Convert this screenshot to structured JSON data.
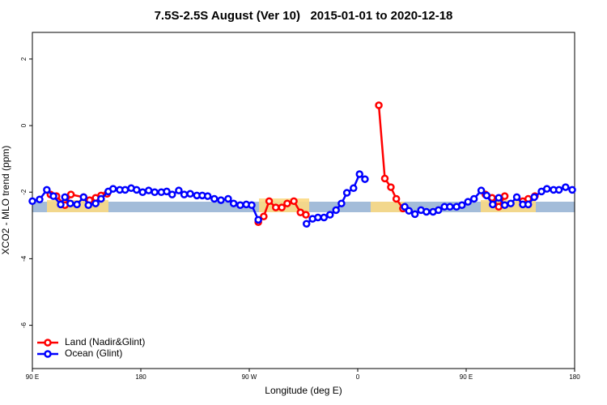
{
  "chart_data": {
    "type": "line",
    "title": "7.5S-2.5S August (Ver 10)   2015-01-01 to 2020-12-18",
    "x_label": "Longitude (deg E)",
    "y_label": "XCO2 - MLO trend (ppm)",
    "xlim": [
      90,
      540
    ],
    "xticks": [
      {
        "value": 90,
        "label": "90 E"
      },
      180,
      {
        "value": 270,
        "label": "90 W"
      },
      {
        "value": 360,
        "label": "0"
      },
      {
        "value": 450,
        "label": "90 E"
      },
      {
        "value": 540,
        "label": "180"
      }
    ],
    "ylim": [
      -7.3,
      2.8
    ],
    "yticks": [
      -6,
      -4,
      -2,
      0,
      2
    ],
    "legend": "bottom-left",
    "series": [
      {
        "name": "Land (Nadir&Glint)",
        "color": "#ff0000",
        "x": [
          105,
          110,
          117,
          122,
          132.5,
          137.5,
          142.5,
          147,
          152,
          null,
          277.5,
          282,
          286.5,
          292,
          297,
          301.5,
          307,
          312.5,
          317,
          null,
          377.5,
          382.5,
          387.5,
          392,
          397.5,
          null,
          466,
          471.5,
          477,
          482,
          null,
          497,
          501.5,
          507
        ],
        "values": [
          -2.07,
          -2.12,
          -2.39,
          -2.07,
          -2.15,
          -2.24,
          -2.17,
          -2.1,
          -2.05,
          null,
          -2.9,
          -2.73,
          -2.27,
          -2.46,
          -2.46,
          -2.34,
          -2.27,
          -2.61,
          -2.68,
          null,
          0.61,
          -1.59,
          -1.85,
          -2.2,
          -2.49,
          null,
          -2.07,
          -2.17,
          -2.44,
          -2.12,
          null,
          -2.27,
          -2.2,
          -2.12
        ]
      },
      {
        "name": "Ocean (Glint)",
        "color": "#0000ff",
        "x": [
          90,
          96,
          102,
          107.5,
          113.5,
          117,
          121.5,
          127,
          132.5,
          136.5,
          142.5,
          147,
          153,
          157,
          162.5,
          167,
          172,
          176.5,
          181.5,
          186.5,
          191.5,
          197,
          201.5,
          206,
          211.5,
          216,
          221,
          226.5,
          231,
          235.5,
          241,
          246.5,
          252.5,
          257,
          262.5,
          267.5,
          272,
          277.5,
          null,
          317.5,
          322.5,
          327,
          332,
          337,
          342,
          346.5,
          351,
          356.5,
          361.5,
          366,
          null,
          399,
          402.5,
          407.5,
          412.5,
          417,
          422.5,
          427,
          432,
          436.5,
          442,
          446.5,
          451.5,
          456.5,
          462.5,
          467,
          472,
          477,
          482,
          487,
          492,
          497,
          501.5,
          506.5,
          512.5,
          517,
          522.5,
          527,
          532.5,
          538
        ],
        "values": [
          -2.27,
          -2.22,
          -1.93,
          -2.12,
          -2.37,
          -2.15,
          -2.34,
          -2.37,
          -2.15,
          -2.39,
          -2.34,
          -2.2,
          -1.98,
          -1.9,
          -1.93,
          -1.93,
          -1.88,
          -1.93,
          -2.0,
          -1.95,
          -2.0,
          -2.0,
          -1.98,
          -2.07,
          -1.95,
          -2.07,
          -2.05,
          -2.1,
          -2.1,
          -2.12,
          -2.2,
          -2.24,
          -2.2,
          -2.34,
          -2.39,
          -2.37,
          -2.39,
          -2.83,
          null,
          -2.95,
          -2.8,
          -2.76,
          -2.76,
          -2.68,
          -2.54,
          -2.34,
          -2.02,
          -1.88,
          -1.46,
          -1.61,
          null,
          -2.44,
          -2.56,
          -2.66,
          -2.54,
          -2.59,
          -2.59,
          -2.54,
          -2.44,
          -2.44,
          -2.44,
          -2.39,
          -2.29,
          -2.2,
          -1.95,
          -2.1,
          -2.37,
          -2.17,
          -2.39,
          -2.34,
          -2.15,
          -2.37,
          -2.37,
          -2.15,
          -1.98,
          -1.9,
          -1.93,
          -1.93,
          -1.85,
          -1.93
        ]
      }
    ]
  }
}
